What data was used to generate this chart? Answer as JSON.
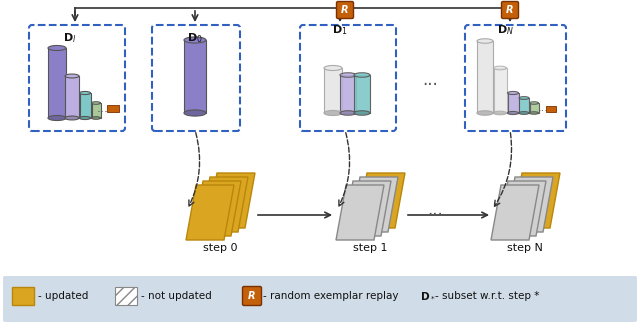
{
  "fig_width": 6.4,
  "fig_height": 3.23,
  "bg_color": "#ffffff",
  "legend_bg": "#d0dce8",
  "gold_color": "#DAA520",
  "gold_dark": "#B8860B",
  "orange_color": "#C4600A",
  "orange_dark": "#8B3A00",
  "purple_color": "#8B80C8",
  "purple_light": "#BCAEE0",
  "teal_color": "#7EC8C8",
  "green_color": "#A8C898",
  "white_cyl": "#E8E8E8",
  "white_cyl_outline": "#AAAAAA",
  "dashed_box_color": "#3060C0",
  "arrow_color": "#333333",
  "text_color": "#111111",
  "step_labels": [
    "step 0",
    "step 1",
    "step N"
  ],
  "dataset_labels": [
    "D_l",
    "D_0",
    "D_1",
    "D_N"
  ],
  "legend_text1": "- updated",
  "legend_text2": "- not updated",
  "legend_text3": "- random exemplar replay",
  "legend_text4": "- subset w.r.t. step *"
}
